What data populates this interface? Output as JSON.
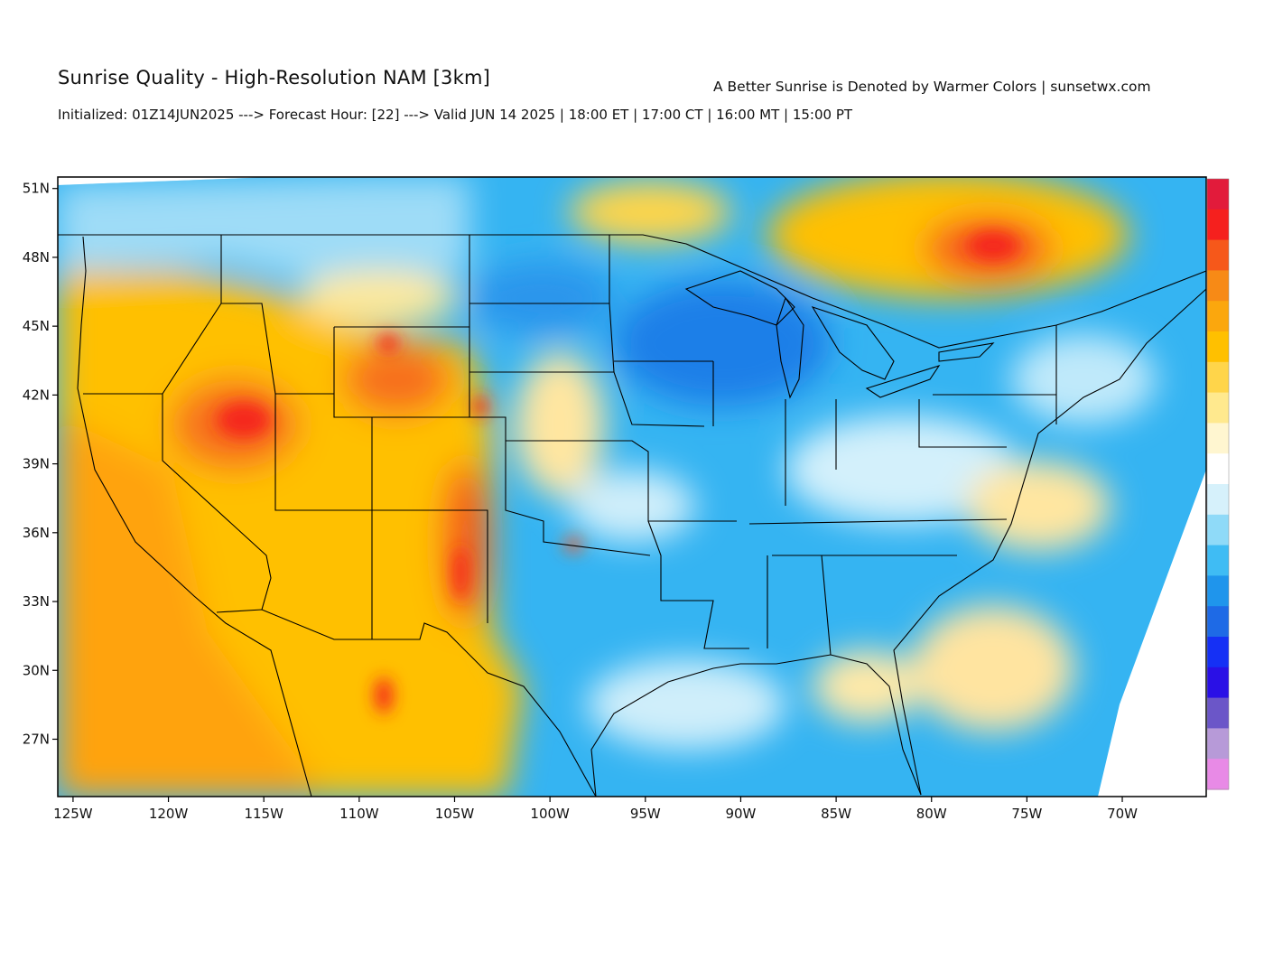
{
  "header": {
    "title": "Sunrise Quality - High-Resolution NAM [3km]",
    "subtitle": "A Better Sunrise is Denoted by Warmer Colors | sunsetwx.com",
    "init_line": "Initialized: 01Z14JUN2025 ---> Forecast Hour: [22] ---> Valid JUN 14 2025 | 18:00 ET | 17:00 CT | 16:00 MT | 15:00 PT"
  },
  "map": {
    "lon_range": [
      -125.8,
      -65.6
    ],
    "lat_range": [
      24.5,
      51.5
    ],
    "lat_ticks": [
      "51N",
      "48N",
      "45N",
      "42N",
      "39N",
      "36N",
      "33N",
      "30N",
      "27N"
    ],
    "lon_ticks": [
      "125W",
      "120W",
      "115W",
      "110W",
      "105W",
      "100W",
      "95W",
      "90W",
      "85W",
      "80W",
      "75W",
      "70W"
    ],
    "colorbar": {
      "colors": [
        "#e21b3b",
        "#f5201e",
        "#f6581a",
        "#f78a16",
        "#fba70d",
        "#ffc000",
        "#ffd54a",
        "#ffe98e",
        "#fff6d0",
        "#ffffff",
        "#d6f1fb",
        "#8fdaf8",
        "#3fbcf4",
        "#1f95ec",
        "#1e6ae6",
        "#1530f5",
        "#2a10e6",
        "#6b56c8",
        "#b79ad8",
        "#e88ae6"
      ]
    },
    "palette": {
      "warm_orange": "#ffa500",
      "yellow": "#ffc400",
      "red": "#f5251f",
      "light_blue": "#58c3f5",
      "blue": "#1b90ec",
      "white": "#ffffff"
    }
  }
}
